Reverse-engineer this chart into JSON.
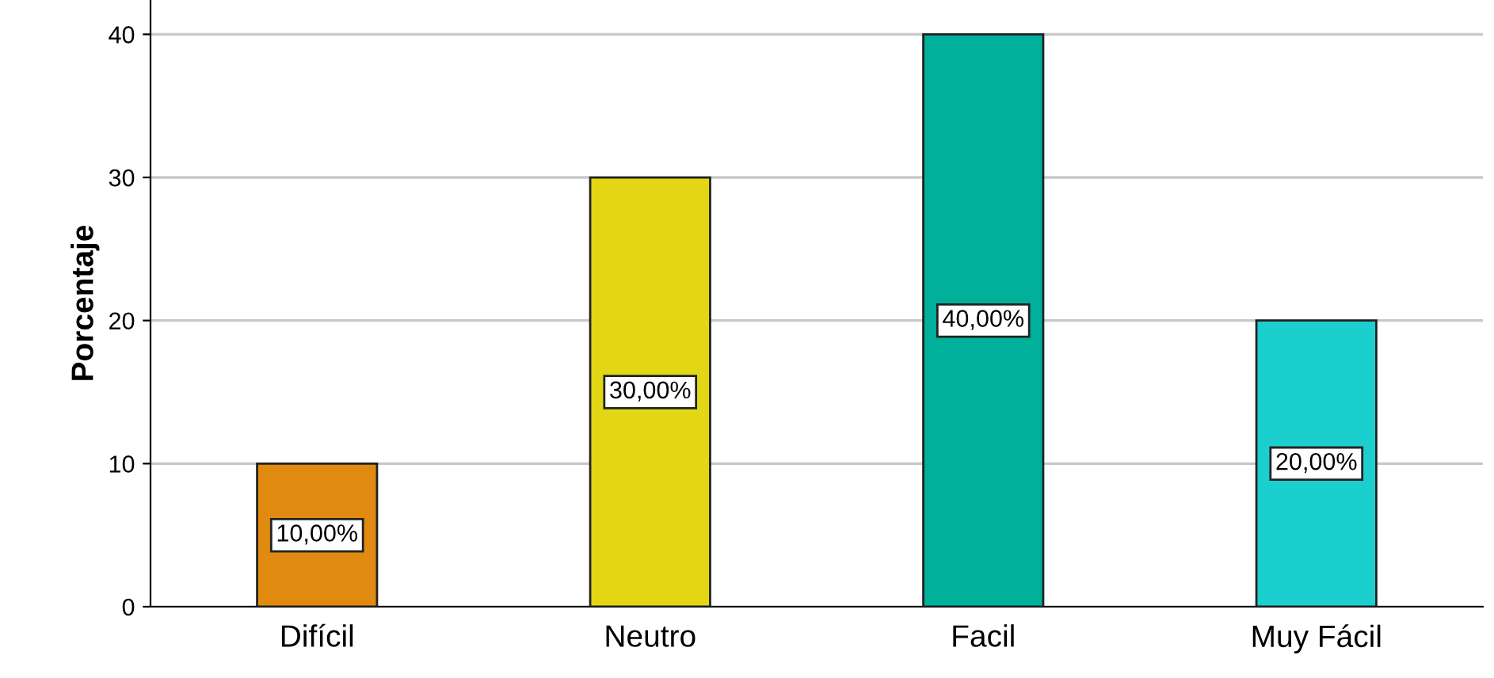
{
  "chart_data": {
    "type": "bar",
    "categories": [
      "Difícil",
      "Neutro",
      "Facil",
      "Muy Fácil"
    ],
    "values": [
      10,
      30,
      40,
      20
    ],
    "colors": [
      "#e08a10",
      "#e3d715",
      "#00b09a",
      "#1ccfcf"
    ],
    "value_labels": [
      "10,00%",
      "30,00%",
      "40,00%",
      "20,00%"
    ],
    "ylabel": "Porcentaje",
    "ylim": [
      0,
      42.4
    ],
    "yticks": [
      0,
      10,
      20,
      30,
      40
    ],
    "grid": "y",
    "legend": false
  }
}
